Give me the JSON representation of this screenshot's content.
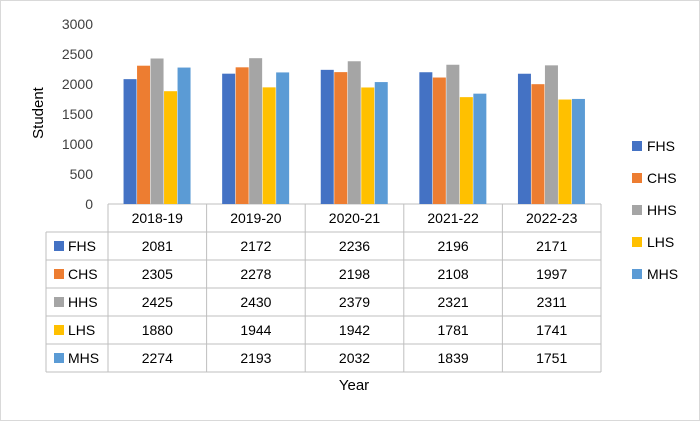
{
  "chart_data": {
    "type": "bar",
    "title": "",
    "xlabel": "Year",
    "ylabel": "Student",
    "ylim": [
      0,
      3000
    ],
    "yticks": [
      0,
      500,
      1000,
      1500,
      2000,
      2500,
      3000
    ],
    "grid": false,
    "legend": "right",
    "data_table": true,
    "categories": [
      "2018-19",
      "2019-20",
      "2020-21",
      "2021-22",
      "2022-23"
    ],
    "series": [
      {
        "name": "FHS",
        "color": "#4472c4",
        "values": [
          2081,
          2172,
          2236,
          2196,
          2171
        ]
      },
      {
        "name": "CHS",
        "color": "#ed7d31",
        "values": [
          2305,
          2278,
          2198,
          2108,
          1997
        ]
      },
      {
        "name": "HHS",
        "color": "#a5a5a5",
        "values": [
          2425,
          2430,
          2379,
          2321,
          2311
        ]
      },
      {
        "name": "LHS",
        "color": "#ffc000",
        "values": [
          1880,
          1944,
          1942,
          1781,
          1741
        ]
      },
      {
        "name": "MHS",
        "color": "#5b9bd5",
        "values": [
          2274,
          2193,
          2032,
          1839,
          1751
        ]
      }
    ]
  }
}
